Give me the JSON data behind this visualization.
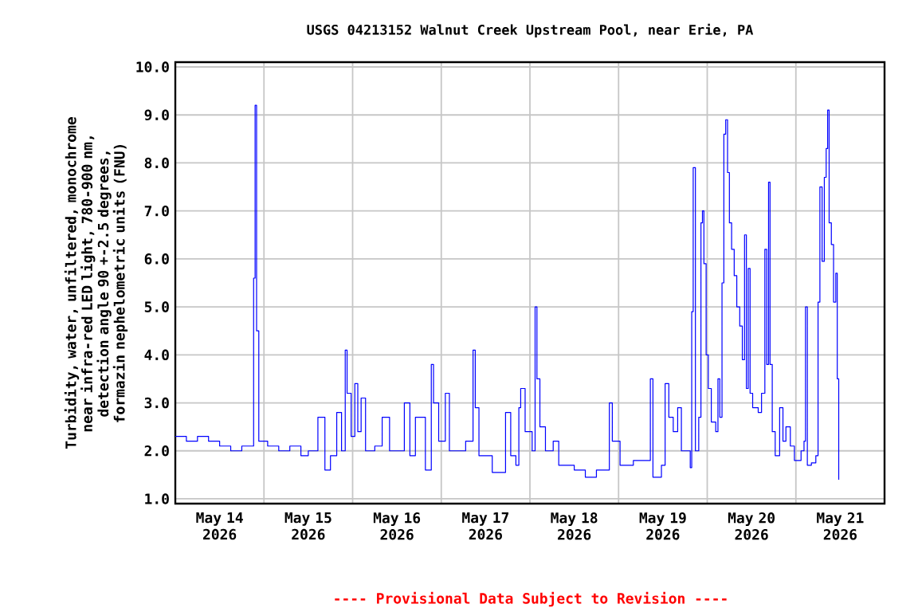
{
  "chart_data": {
    "type": "step",
    "title": "USGS 04213152 Walnut Creek Upstream Pool, near Erie, PA",
    "ylabel": "Turbidity, water, unfiltered, monochrome near infra-red LED light, 780-900 nm, detection angle 90 +-2.5 degrees, formazin nephelometric units (FNU)",
    "annotations": [
      "---- Provisional Data Subject to Revision ----"
    ],
    "x": [
      "2026-05-14T00:00",
      "2026-05-14T03:00",
      "2026-05-14T06:00",
      "2026-05-14T09:00",
      "2026-05-14T12:00",
      "2026-05-14T15:00",
      "2026-05-14T18:00",
      "2026-05-14T21:12",
      "2026-05-14T21:36",
      "2026-05-14T22:00",
      "2026-05-14T22:36",
      "2026-05-15T01:00",
      "2026-05-15T04:00",
      "2026-05-15T07:00",
      "2026-05-15T10:00",
      "2026-05-15T12:00",
      "2026-05-15T14:36",
      "2026-05-15T16:30",
      "2026-05-15T18:00",
      "2026-05-15T19:42",
      "2026-05-15T21:00",
      "2026-05-15T22:00",
      "2026-05-15T22:30",
      "2026-05-15T23:36",
      "2026-05-16T00:36",
      "2026-05-16T01:24",
      "2026-05-16T02:18",
      "2026-05-16T03:30",
      "2026-05-16T06:00",
      "2026-05-16T08:00",
      "2026-05-16T10:00",
      "2026-05-16T14:00",
      "2026-05-16T15:30",
      "2026-05-16T17:00",
      "2026-05-16T19:42",
      "2026-05-16T21:18",
      "2026-05-16T21:54",
      "2026-05-16T23:18",
      "2026-05-17T01:06",
      "2026-05-17T02:12",
      "2026-05-17T06:36",
      "2026-05-17T08:36",
      "2026-05-17T09:12",
      "2026-05-17T10:12",
      "2026-05-17T13:48",
      "2026-05-17T17:24",
      "2026-05-17T18:48",
      "2026-05-17T20:12",
      "2026-05-17T21:00",
      "2026-05-17T21:30",
      "2026-05-17T22:42",
      "2026-05-18T00:36",
      "2026-05-18T01:24",
      "2026-05-18T01:54",
      "2026-05-18T02:42",
      "2026-05-18T04:12",
      "2026-05-18T06:18",
      "2026-05-18T07:48",
      "2026-05-18T12:00",
      "2026-05-18T15:00",
      "2026-05-18T18:00",
      "2026-05-18T21:30",
      "2026-05-18T22:18",
      "2026-05-19T00:24",
      "2026-05-19T04:00",
      "2026-05-19T08:36",
      "2026-05-19T09:18",
      "2026-05-19T11:36",
      "2026-05-19T12:36",
      "2026-05-19T13:36",
      "2026-05-19T14:48",
      "2026-05-19T16:00",
      "2026-05-19T17:00",
      "2026-05-19T19:24",
      "2026-05-19T19:48",
      "2026-05-19T20:12",
      "2026-05-19T20:48",
      "2026-05-19T21:42",
      "2026-05-19T22:18",
      "2026-05-19T22:42",
      "2026-05-19T23:06",
      "2026-05-19T23:42",
      "2026-05-20T00:18",
      "2026-05-20T01:06",
      "2026-05-20T02:18",
      "2026-05-20T02:54",
      "2026-05-20T03:24",
      "2026-05-20T04:00",
      "2026-05-20T04:30",
      "2026-05-20T05:00",
      "2026-05-20T05:30",
      "2026-05-20T06:00",
      "2026-05-20T06:36",
      "2026-05-20T07:18",
      "2026-05-20T08:00",
      "2026-05-20T08:48",
      "2026-05-20T09:30",
      "2026-05-20T10:06",
      "2026-05-20T10:36",
      "2026-05-20T11:06",
      "2026-05-20T11:36",
      "2026-05-20T12:18",
      "2026-05-20T13:48",
      "2026-05-20T14:42",
      "2026-05-20T15:36",
      "2026-05-20T16:06",
      "2026-05-20T16:36",
      "2026-05-20T17:00",
      "2026-05-20T17:36",
      "2026-05-20T18:24",
      "2026-05-20T19:36",
      "2026-05-20T20:30",
      "2026-05-20T21:18",
      "2026-05-20T22:30",
      "2026-05-20T23:36",
      "2026-05-21T01:24",
      "2026-05-21T02:12",
      "2026-05-21T02:36",
      "2026-05-21T03:06",
      "2026-05-21T04:12",
      "2026-05-21T05:24",
      "2026-05-21T06:00",
      "2026-05-21T06:30",
      "2026-05-21T07:06",
      "2026-05-21T07:42",
      "2026-05-21T08:12",
      "2026-05-21T08:36",
      "2026-05-21T09:00",
      "2026-05-21T09:36",
      "2026-05-21T10:12",
      "2026-05-21T10:48",
      "2026-05-21T11:12",
      "2026-05-21T11:36"
    ],
    "values": [
      2.3,
      2.2,
      2.3,
      2.2,
      2.1,
      2.0,
      2.1,
      5.6,
      9.2,
      4.5,
      2.2,
      2.1,
      2.0,
      2.1,
      1.9,
      2.0,
      2.7,
      1.6,
      1.9,
      2.8,
      2.0,
      4.1,
      3.2,
      2.3,
      3.4,
      2.4,
      3.1,
      2.0,
      2.1,
      2.7,
      2.0,
      3.0,
      1.9,
      2.7,
      1.6,
      3.8,
      3.0,
      2.2,
      3.2,
      2.0,
      2.2,
      4.1,
      2.9,
      1.9,
      1.55,
      2.8,
      1.9,
      1.7,
      2.9,
      3.3,
      2.4,
      2.0,
      5.0,
      3.5,
      2.5,
      2.0,
      2.2,
      1.7,
      1.6,
      1.45,
      1.6,
      3.0,
      2.2,
      1.7,
      1.8,
      3.5,
      1.45,
      1.7,
      3.4,
      2.7,
      2.4,
      2.9,
      2.0,
      1.65,
      4.9,
      7.9,
      2.0,
      2.7,
      6.75,
      7.0,
      5.9,
      4.0,
      3.3,
      2.6,
      2.4,
      3.5,
      2.7,
      5.5,
      8.6,
      8.9,
      7.8,
      6.75,
      6.2,
      5.65,
      5.0,
      4.6,
      3.9,
      6.5,
      3.3,
      5.8,
      3.2,
      2.9,
      2.8,
      3.2,
      6.2,
      3.8,
      7.6,
      3.8,
      2.4,
      1.9,
      2.9,
      2.2,
      2.5,
      2.1,
      1.8,
      2.0,
      2.2,
      5.0,
      1.7,
      1.75,
      1.9,
      5.1,
      7.5,
      5.95,
      7.7,
      8.3,
      9.1,
      6.75,
      6.3,
      5.1,
      5.7,
      3.5,
      1.4
    ],
    "color": "#0000ff",
    "marker": "none",
    "xlim": [
      "2026-05-14",
      "2026-05-22"
    ],
    "xticks": [
      {
        "value": "2026-05-14T12:00",
        "label": "May 14 2026"
      },
      {
        "value": "2026-05-15T12:00",
        "label": "May 15 2026"
      },
      {
        "value": "2026-05-16T12:00",
        "label": "May 16 2026"
      },
      {
        "value": "2026-05-17T12:00",
        "label": "May 17 2026"
      },
      {
        "value": "2026-05-18T12:00",
        "label": "May 18 2026"
      },
      {
        "value": "2026-05-19T12:00",
        "label": "May 19 2026"
      },
      {
        "value": "2026-05-20T12:00",
        "label": "May 20 2026"
      },
      {
        "value": "2026-05-21T12:00",
        "label": "May 21 2026"
      },
      {
        "value": "2026-05-15",
        "label": null
      },
      {
        "value": "2026-05-16",
        "label": null
      },
      {
        "value": "2026-05-17",
        "label": null
      },
      {
        "value": "2026-05-18",
        "label": null
      },
      {
        "value": "2026-05-19",
        "label": null
      },
      {
        "value": "2026-05-20",
        "label": null
      },
      {
        "value": "2026-05-21",
        "label": null
      }
    ],
    "ylim": [
      0.9,
      10.1
    ],
    "yticks": [
      {
        "value": 1,
        "label": "1.0"
      },
      {
        "value": 2,
        "label": "2.0"
      },
      {
        "value": 3,
        "label": "3.0"
      },
      {
        "value": 4,
        "label": "4.0"
      },
      {
        "value": 5,
        "label": "5.0"
      },
      {
        "value": 6,
        "label": "6.0"
      },
      {
        "value": 7,
        "label": "7.0"
      },
      {
        "value": 8,
        "label": "8.0"
      },
      {
        "value": 9,
        "label": "9.0"
      },
      {
        "value": 10,
        "label": "10.0"
      }
    ],
    "grid": true
  }
}
